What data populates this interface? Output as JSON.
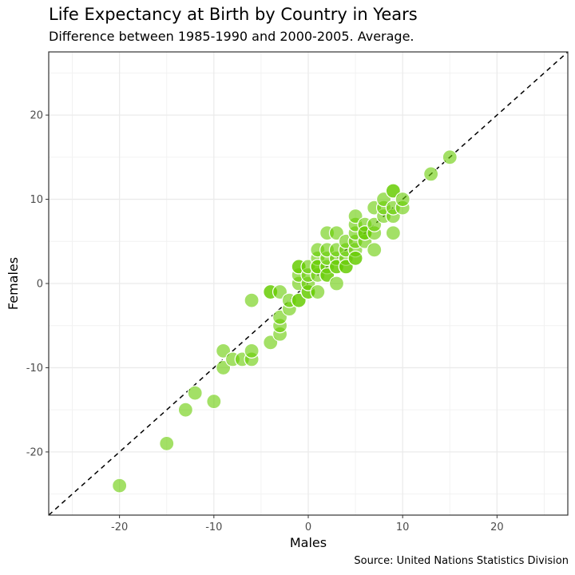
{
  "chart_data": {
    "type": "scatter",
    "title": "Life Expectancy at Birth by Country in Years",
    "subtitle": "Difference between 1985-1990 and 2000-2005. Average.",
    "caption": "Source: United Nations Statistics Division",
    "xlabel": "Males",
    "ylabel": "Females",
    "xlim": [
      -27.5,
      27.5
    ],
    "ylim": [
      -27.5,
      27.5
    ],
    "xticks": [
      -20,
      -10,
      0,
      10,
      20
    ],
    "yticks": [
      -20,
      -10,
      0,
      10,
      20
    ],
    "reference_line": {
      "slope": 1,
      "intercept": 0,
      "style": "dashed"
    },
    "grid": true,
    "point_color": "#66cc00",
    "point_opacity": 0.6,
    "points": [
      {
        "x": -20,
        "y": -24
      },
      {
        "x": -15,
        "y": -19
      },
      {
        "x": -13,
        "y": -15
      },
      {
        "x": -12,
        "y": -13
      },
      {
        "x": -10,
        "y": -14
      },
      {
        "x": -9,
        "y": -10
      },
      {
        "x": -9,
        "y": -8
      },
      {
        "x": -8,
        "y": -9
      },
      {
        "x": -7,
        "y": -9
      },
      {
        "x": -6,
        "y": -9
      },
      {
        "x": -6,
        "y": -8
      },
      {
        "x": -6,
        "y": -2
      },
      {
        "x": -4,
        "y": -7
      },
      {
        "x": -4,
        "y": -1
      },
      {
        "x": -4,
        "y": -1
      },
      {
        "x": -3,
        "y": -6
      },
      {
        "x": -3,
        "y": -5
      },
      {
        "x": -3,
        "y": -4
      },
      {
        "x": -3,
        "y": -1
      },
      {
        "x": -2,
        "y": -3
      },
      {
        "x": -2,
        "y": -2
      },
      {
        "x": -1,
        "y": -2
      },
      {
        "x": -1,
        "y": -2
      },
      {
        "x": -1,
        "y": 0
      },
      {
        "x": -1,
        "y": 1
      },
      {
        "x": -1,
        "y": 2
      },
      {
        "x": -1,
        "y": 2
      },
      {
        "x": 0,
        "y": -1
      },
      {
        "x": 0,
        "y": -1
      },
      {
        "x": 0,
        "y": 0
      },
      {
        "x": 0,
        "y": 1
      },
      {
        "x": 0,
        "y": 2
      },
      {
        "x": 1,
        "y": -1
      },
      {
        "x": 1,
        "y": 1
      },
      {
        "x": 1,
        "y": 2
      },
      {
        "x": 1,
        "y": 3
      },
      {
        "x": 1,
        "y": 4
      },
      {
        "x": 1,
        "y": 2
      },
      {
        "x": 2,
        "y": 1
      },
      {
        "x": 2,
        "y": 2
      },
      {
        "x": 2,
        "y": 3
      },
      {
        "x": 2,
        "y": 4
      },
      {
        "x": 2,
        "y": 6
      },
      {
        "x": 2,
        "y": 1
      },
      {
        "x": 3,
        "y": 0
      },
      {
        "x": 3,
        "y": 2
      },
      {
        "x": 3,
        "y": 3
      },
      {
        "x": 3,
        "y": 4
      },
      {
        "x": 3,
        "y": 6
      },
      {
        "x": 3,
        "y": 2
      },
      {
        "x": 4,
        "y": 2
      },
      {
        "x": 4,
        "y": 3
      },
      {
        "x": 4,
        "y": 4
      },
      {
        "x": 4,
        "y": 5
      },
      {
        "x": 4,
        "y": 2
      },
      {
        "x": 5,
        "y": 3
      },
      {
        "x": 5,
        "y": 4
      },
      {
        "x": 5,
        "y": 5
      },
      {
        "x": 5,
        "y": 6
      },
      {
        "x": 5,
        "y": 7
      },
      {
        "x": 5,
        "y": 8
      },
      {
        "x": 5,
        "y": 3
      },
      {
        "x": 6,
        "y": 5
      },
      {
        "x": 6,
        "y": 6
      },
      {
        "x": 6,
        "y": 7
      },
      {
        "x": 6,
        "y": 6
      },
      {
        "x": 7,
        "y": 4
      },
      {
        "x": 7,
        "y": 6
      },
      {
        "x": 7,
        "y": 7
      },
      {
        "x": 7,
        "y": 9
      },
      {
        "x": 8,
        "y": 8
      },
      {
        "x": 8,
        "y": 9
      },
      {
        "x": 8,
        "y": 10
      },
      {
        "x": 9,
        "y": 6
      },
      {
        "x": 9,
        "y": 8
      },
      {
        "x": 9,
        "y": 9
      },
      {
        "x": 9,
        "y": 11
      },
      {
        "x": 9,
        "y": 11
      },
      {
        "x": 10,
        "y": 9
      },
      {
        "x": 10,
        "y": 10
      },
      {
        "x": 13,
        "y": 13
      },
      {
        "x": 15,
        "y": 15
      }
    ]
  }
}
